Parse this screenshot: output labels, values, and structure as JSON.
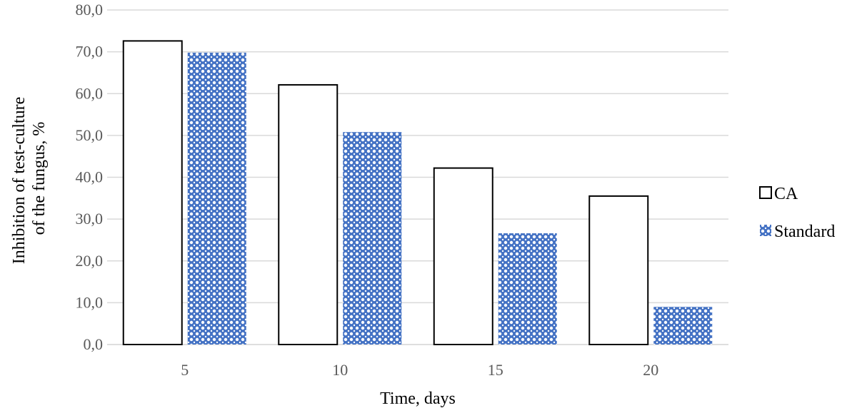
{
  "chart_data": {
    "type": "bar",
    "title": "",
    "xlabel": "Time, days",
    "ylabel_lines": [
      "Inhibition of test-culture",
      "of the fungus, %"
    ],
    "categories": [
      "5",
      "10",
      "15",
      "20"
    ],
    "series": [
      {
        "name": "CA",
        "values": [
          72.6,
          62.1,
          42.2,
          35.5
        ],
        "fill": "#ffffff",
        "stroke": "#000000"
      },
      {
        "name": "Standard",
        "values": [
          69.8,
          50.8,
          26.6,
          9.0
        ],
        "fill": "#4472c4",
        "stroke": "#4472c4"
      }
    ],
    "ylim": [
      0,
      80
    ],
    "yticks": [
      "0,0",
      "10,0",
      "20,0",
      "30,0",
      "40,0",
      "50,0",
      "60,0",
      "70,0",
      "80,0"
    ],
    "grid": true,
    "legend_position": "right",
    "colors": {
      "grid": "#d9d9d9",
      "tick_text": "#595959"
    }
  }
}
